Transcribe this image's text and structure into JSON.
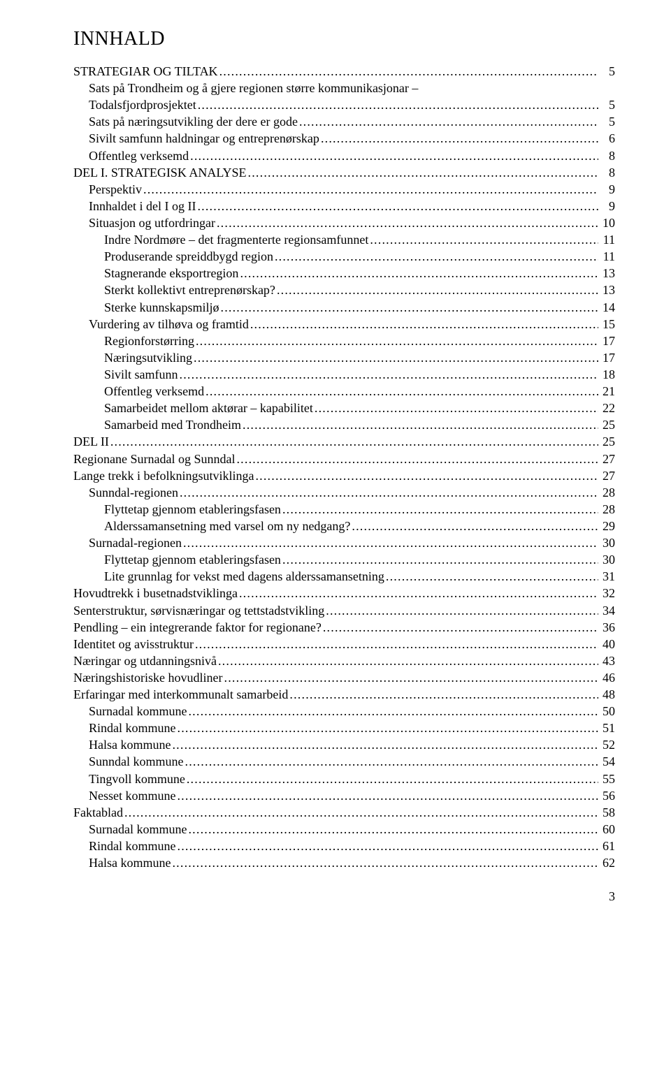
{
  "title": "INNHALD",
  "page_number": "3",
  "entries": [
    {
      "label": "STRATEGIAR OG TILTAK",
      "page": "5",
      "indent": 0
    },
    {
      "label": "Sats på Trondheim og å gjere regionen større kommunikasjonar –",
      "page": "",
      "indent": 1,
      "noleader": true
    },
    {
      "label": "Todalsfjordprosjektet",
      "page": "5",
      "indent": 1
    },
    {
      "label": "Sats på næringsutvikling der dere er gode",
      "page": "5",
      "indent": 1
    },
    {
      "label": "Sivilt samfunn haldningar og entreprenørskap",
      "page": "6",
      "indent": 1
    },
    {
      "label": "Offentleg verksemd",
      "page": "8",
      "indent": 1
    },
    {
      "label": "DEL I. STRATEGISK ANALYSE",
      "page": "8",
      "indent": 0
    },
    {
      "label": "Perspektiv",
      "page": "9",
      "indent": 1
    },
    {
      "label": "Innhaldet i del I og II",
      "page": "9",
      "indent": 1
    },
    {
      "label": "Situasjon og utfordringar",
      "page": "10",
      "indent": 1
    },
    {
      "label": "Indre Nordmøre – det fragmenterte regionsamfunnet",
      "page": "11",
      "indent": 2
    },
    {
      "label": "Produserande spreiddbygd region",
      "page": "11",
      "indent": 2
    },
    {
      "label": "Stagnerande eksportregion",
      "page": "13",
      "indent": 2
    },
    {
      "label": "Sterkt kollektivt entreprenørskap?",
      "page": "13",
      "indent": 2
    },
    {
      "label": "Sterke kunnskapsmiljø",
      "page": "14",
      "indent": 2
    },
    {
      "label": "Vurdering av tilhøva og framtid",
      "page": "15",
      "indent": 1
    },
    {
      "label": "Regionforstørring",
      "page": "17",
      "indent": 2
    },
    {
      "label": "Næringsutvikling",
      "page": "17",
      "indent": 2
    },
    {
      "label": "Sivilt samfunn",
      "page": "18",
      "indent": 2
    },
    {
      "label": "Offentleg verksemd",
      "page": "21",
      "indent": 2
    },
    {
      "label": "Samarbeidet mellom aktørar – kapabilitet",
      "page": "22",
      "indent": 2
    },
    {
      "label": "Samarbeid med Trondheim",
      "page": "25",
      "indent": 2
    },
    {
      "label": "DEL II",
      "page": "25",
      "indent": 0
    },
    {
      "label": "Regionane Surnadal og Sunndal",
      "page": "27",
      "indent": 0
    },
    {
      "label": "Lange trekk i befolkningsutviklinga",
      "page": "27",
      "indent": 0
    },
    {
      "label": "Sunndal-regionen",
      "page": "28",
      "indent": 1
    },
    {
      "label": "Flyttetap gjennom etableringsfasen",
      "page": "28",
      "indent": 2
    },
    {
      "label": "Alderssamansetning med varsel om ny nedgang?",
      "page": "29",
      "indent": 2
    },
    {
      "label": "Surnadal-regionen",
      "page": "30",
      "indent": 1
    },
    {
      "label": "Flyttetap gjennom etableringsfasen",
      "page": "30",
      "indent": 2
    },
    {
      "label": "Lite grunnlag for vekst med dagens alderssamansetning",
      "page": "31",
      "indent": 2
    },
    {
      "label": "Hovudtrekk i busetnadstviklinga",
      "page": "32",
      "indent": 0
    },
    {
      "label": "Senterstruktur, sørvisnæringar og tettstadstvikling",
      "page": "34",
      "indent": 0
    },
    {
      "label": "Pendling – ein integrerande faktor for regionane?",
      "page": "36",
      "indent": 0
    },
    {
      "label": "Identitet og avisstruktur",
      "page": "40",
      "indent": 0
    },
    {
      "label": "Næringar og utdanningsnivå",
      "page": "43",
      "indent": 0
    },
    {
      "label": "Næringshistoriske hovudliner",
      "page": "46",
      "indent": 0
    },
    {
      "label": "Erfaringar med interkommunalt samarbeid",
      "page": "48",
      "indent": 0
    },
    {
      "label": "Surnadal kommune",
      "page": "50",
      "indent": 1
    },
    {
      "label": "Rindal kommune",
      "page": "51",
      "indent": 1
    },
    {
      "label": "Halsa kommune",
      "page": "52",
      "indent": 1
    },
    {
      "label": "Sunndal kommune",
      "page": "54",
      "indent": 1
    },
    {
      "label": "Tingvoll kommune",
      "page": "55",
      "indent": 1
    },
    {
      "label": "Nesset kommune",
      "page": "56",
      "indent": 1
    },
    {
      "label": "Faktablad",
      "page": "58",
      "indent": 0
    },
    {
      "label": "Surnadal kommune",
      "page": "60",
      "indent": 1
    },
    {
      "label": "Rindal kommune",
      "page": "61",
      "indent": 1
    },
    {
      "label": "Halsa kommune",
      "page": "62",
      "indent": 1
    }
  ]
}
